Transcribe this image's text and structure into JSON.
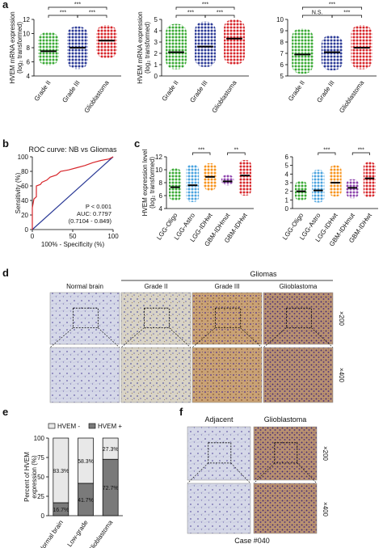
{
  "panel_labels": [
    "a",
    "b",
    "c",
    "d",
    "e",
    "f"
  ],
  "chart_data": [
    {
      "type": "dotplot",
      "ylabel": [
        "HVEM mRNA expression",
        "(log₂ transformed)"
      ],
      "categories": [
        "Grade II",
        "Grade III",
        "Glioblastoma"
      ],
      "colors": [
        "#3aaa35",
        "#2b3a96",
        "#d7262b"
      ],
      "values": [
        7.5,
        8.0,
        9.0
      ],
      "ranges": [
        [
          5.5,
          10.2
        ],
        [
          5.0,
          11.0
        ],
        [
          6.5,
          11.2
        ]
      ],
      "ylim": [
        4,
        12
      ],
      "yticks": [
        4,
        6,
        8,
        10,
        12
      ],
      "significance": [
        {
          "between": [
            "Grade II",
            "Grade III"
          ],
          "label": "***"
        },
        {
          "between": [
            "Grade III",
            "Glioblastoma"
          ],
          "label": "***"
        },
        {
          "between": [
            "Grade II",
            "Glioblastoma"
          ],
          "label": "***"
        }
      ]
    },
    {
      "type": "dotplot",
      "ylabel": [
        "HVEM mRNA expression",
        "(log₂ transformed)"
      ],
      "categories": [
        "Grade II",
        "Grade III",
        "Glioblastoma"
      ],
      "colors": [
        "#3aaa35",
        "#2b3a96",
        "#d7262b"
      ],
      "values": [
        2.1,
        2.6,
        3.3
      ],
      "ranges": [
        [
          0.6,
          4.6
        ],
        [
          0.8,
          4.8
        ],
        [
          1.0,
          5.0
        ]
      ],
      "ylim": [
        0,
        5
      ],
      "yticks": [
        0,
        1,
        2,
        3,
        4,
        5
      ],
      "significance": [
        {
          "between": [
            "Grade II",
            "Grade III"
          ],
          "label": "***"
        },
        {
          "between": [
            "Grade III",
            "Glioblastoma"
          ],
          "label": "***"
        },
        {
          "between": [
            "Grade II",
            "Glioblastoma"
          ],
          "label": "***"
        }
      ]
    },
    {
      "type": "dotplot",
      "categories": [
        "Grade II",
        "Grade III",
        "Glioblastoma"
      ],
      "colors": [
        "#3aaa35",
        "#2b3a96",
        "#d7262b"
      ],
      "values": [
        6.9,
        7.1,
        7.5
      ],
      "ranges": [
        [
          5.2,
          9.2
        ],
        [
          5.5,
          8.6
        ],
        [
          5.6,
          9.5
        ]
      ],
      "ylim": [
        5,
        10
      ],
      "yticks": [
        5,
        6,
        7,
        8,
        9,
        10
      ],
      "significance": [
        {
          "between": [
            "Grade II",
            "Grade III"
          ],
          "label": "N.S."
        },
        {
          "between": [
            "Grade III",
            "Glioblastoma"
          ],
          "label": "***"
        },
        {
          "between": [
            "Grade II",
            "Glioblastoma"
          ],
          "label": "***"
        }
      ]
    },
    {
      "type": "line",
      "title": "ROC curve: NB vs Gliomas",
      "xlabel": "100% - Specificity (%)",
      "ylabel": [
        "Sensitivity (%)"
      ],
      "x": [
        0,
        0,
        2,
        5,
        5,
        10,
        12,
        18,
        22,
        30,
        35,
        45,
        55,
        65,
        75,
        85,
        95,
        100
      ],
      "values": [
        0,
        30,
        42,
        45,
        60,
        62,
        65,
        68,
        72,
        75,
        80,
        82,
        85,
        88,
        92,
        95,
        97,
        100
      ],
      "color": "#d7262b",
      "reference_color": "#2b3a96",
      "xlim": [
        0,
        100
      ],
      "ylim": [
        0,
        100
      ],
      "xticks": [
        0,
        50,
        100
      ],
      "yticks": [
        0,
        20,
        40,
        60,
        80,
        100
      ],
      "annotations": [
        "P < 0.001",
        "AUC: 0.7797",
        "(0.7104 - 0.849)"
      ]
    },
    {
      "type": "dotplot",
      "ylabel": [
        "HVEM expression level",
        "(log₂ transformed)"
      ],
      "categories": [
        "LGG-Oligo",
        "LGG-Astro",
        "LGG-IDHwt",
        "GBM-IDHmut",
        "GBM-IDHwt"
      ],
      "colors": [
        "#3aaa35",
        "#4aa3df",
        "#f7941d",
        "#8e44ad",
        "#d7262b"
      ],
      "values": [
        7.3,
        7.6,
        8.9,
        8.2,
        9.1
      ],
      "ranges": [
        [
          5.2,
          10.2
        ],
        [
          5.0,
          10.8
        ],
        [
          6.8,
          11.0
        ],
        [
          7.6,
          9.2
        ],
        [
          6.0,
          11.5
        ]
      ],
      "ylim": [
        4,
        12
      ],
      "yticks": [
        4,
        6,
        8,
        10,
        12
      ],
      "significance": [
        {
          "between": [
            "LGG-Astro",
            "LGG-IDHwt"
          ],
          "label": "***"
        },
        {
          "between": [
            "GBM-IDHmut",
            "GBM-IDHwt"
          ],
          "label": "**"
        }
      ]
    },
    {
      "type": "dotplot",
      "categories": [
        "LGG-Oligo",
        "LGG-Astro",
        "LGG-IDHwt",
        "GBM-IDHmut",
        "GBM-IDHwt"
      ],
      "colors": [
        "#3aaa35",
        "#4aa3df",
        "#f7941d",
        "#8e44ad",
        "#d7262b"
      ],
      "values": [
        2.0,
        2.1,
        3.0,
        2.4,
        3.5
      ],
      "ranges": [
        [
          0.9,
          3.2
        ],
        [
          0.7,
          4.5
        ],
        [
          1.4,
          5.0
        ],
        [
          1.2,
          3.4
        ],
        [
          1.3,
          5.4
        ]
      ],
      "ylim": [
        0,
        6
      ],
      "yticks": [
        0,
        1,
        2,
        3,
        4,
        5,
        6
      ],
      "significance": [
        {
          "between": [
            "LGG-Astro",
            "LGG-IDHwt"
          ],
          "label": "***"
        },
        {
          "between": [
            "GBM-IDHmut",
            "GBM-IDHwt"
          ],
          "label": "***"
        }
      ]
    },
    {
      "type": "stacked_bar",
      "ylabel": [
        "Percent of HVEM",
        "expression (%)"
      ],
      "categories": [
        "Normal brain",
        "Low-grade",
        "Glioblastoma"
      ],
      "series": [
        {
          "name": "HVEM -",
          "color": "#e8e8e8",
          "values": [
            83.3,
            58.3,
            27.3
          ],
          "value_labels": [
            "83.3%",
            "58.3%",
            "27.3%"
          ]
        },
        {
          "name": "HVEM +",
          "color": "#7a7a7a",
          "values": [
            16.7,
            41.7,
            72.7
          ],
          "value_labels": [
            "16.7%",
            "41.7%",
            "72.7%"
          ]
        }
      ],
      "ylim": [
        0,
        100
      ],
      "yticks": [
        0,
        25,
        50,
        75,
        100
      ]
    }
  ],
  "figure_d": {
    "group_label": "Gliomas",
    "columns": [
      "Normal brain",
      "Grade II",
      "Grade III",
      "Glioblastoma"
    ],
    "magnifications": [
      "×200",
      "×400"
    ]
  },
  "figure_f": {
    "columns": [
      "Adjacent",
      "Glioblastoma"
    ],
    "magnifications": [
      "×200",
      "×400"
    ],
    "caption": "Case #040"
  }
}
